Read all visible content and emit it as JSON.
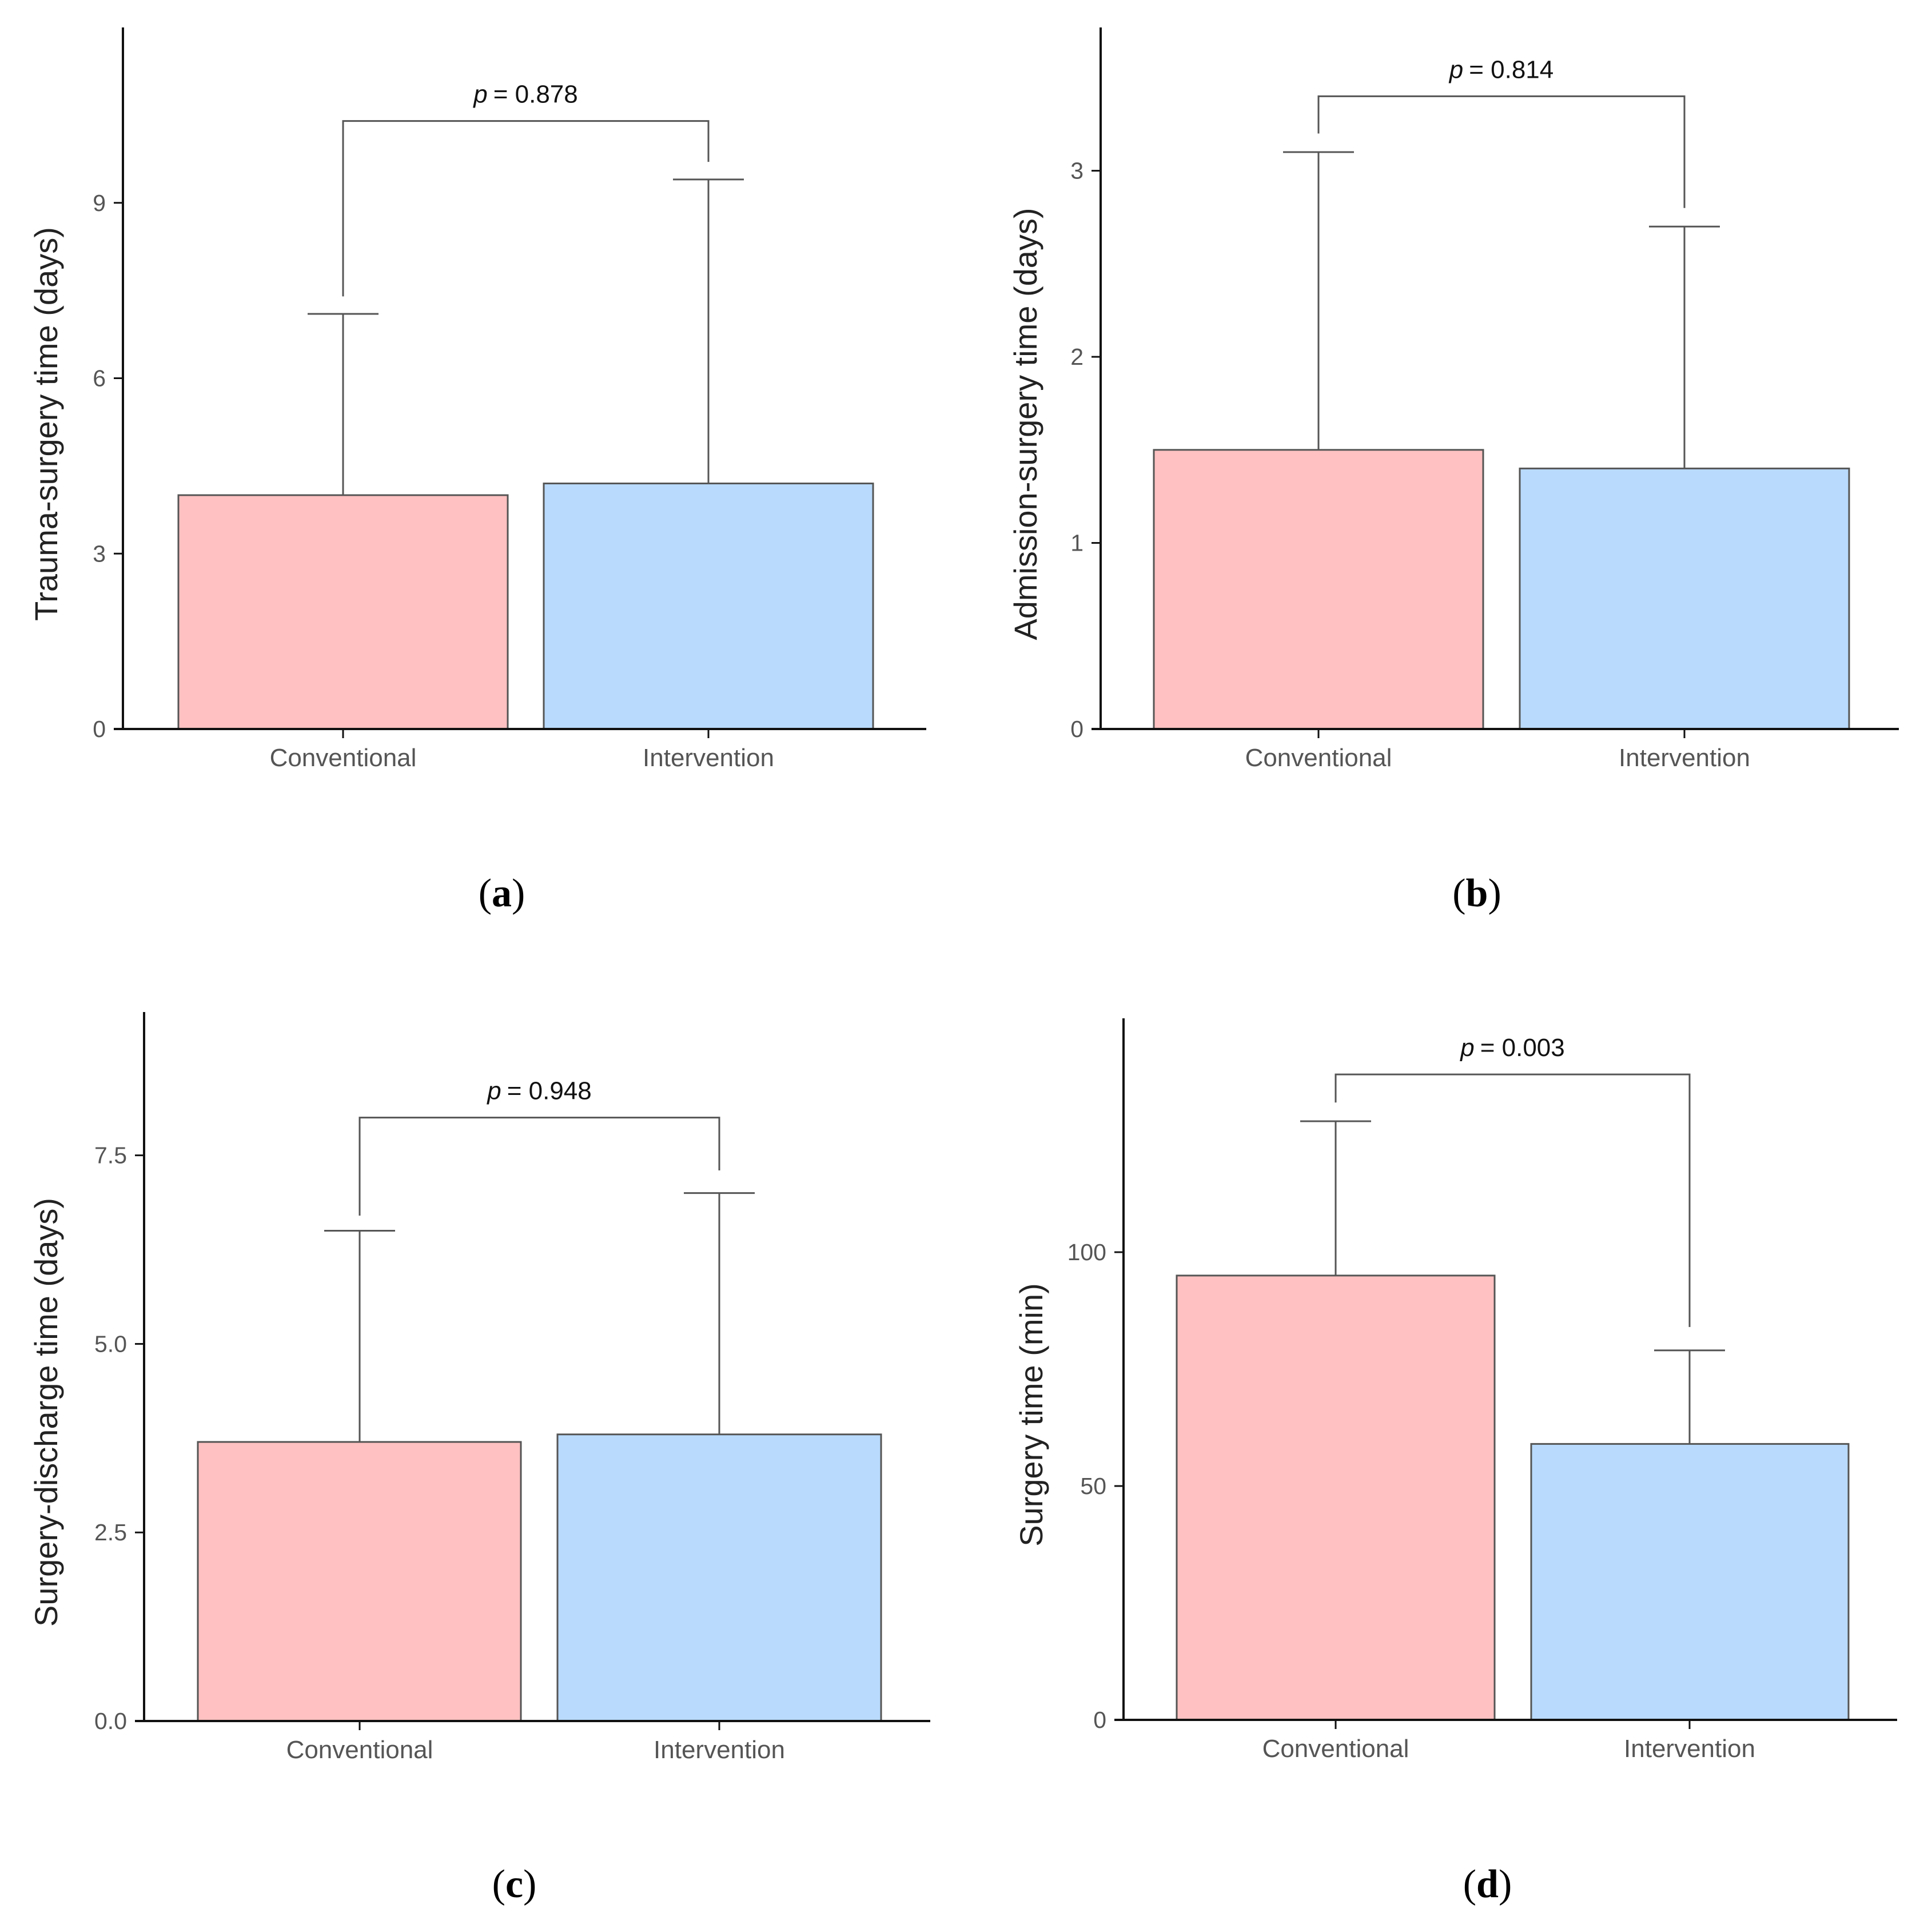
{
  "colors": {
    "conventional": "#ffc1c1",
    "intervention": "#b9dafc",
    "bar_outline": "#555555",
    "axis": "#111111",
    "bracket": "#555555"
  },
  "chart_data": [
    {
      "type": "bar",
      "caption": "a",
      "ylabel": "Trauma-surgery time (days)",
      "categories": [
        "Conventional",
        "Intervention"
      ],
      "values": [
        4.0,
        4.2
      ],
      "error_upper": [
        7.1,
        9.4
      ],
      "ylim": [
        0,
        12
      ],
      "yticks": [
        0,
        3,
        6,
        9
      ],
      "ytick_labels": [
        "0",
        "3",
        "6",
        "9"
      ],
      "bracket": {
        "label_prefix": "p",
        "label_value": "= 0.878",
        "y": 10.4,
        "left_tip": 7.4,
        "right_tip": 9.7
      },
      "grid": false
    },
    {
      "type": "bar",
      "caption": "b",
      "ylabel": "Admission-surgery time (days)",
      "categories": [
        "Conventional",
        "Intervention"
      ],
      "values": [
        1.5,
        1.4
      ],
      "error_upper": [
        3.1,
        2.7
      ],
      "ylim": [
        0,
        3.77
      ],
      "yticks": [
        0,
        1,
        2,
        3
      ],
      "ytick_labels": [
        "0",
        "1",
        "2",
        "3"
      ],
      "bracket": {
        "label_prefix": "p",
        "label_value": "= 0.814",
        "y": 3.4,
        "left_tip": 3.2,
        "right_tip": 2.8
      },
      "grid": false
    },
    {
      "type": "bar",
      "caption": "c",
      "ylabel": "Surgery-discharge time (days)",
      "categories": [
        "Conventional",
        "Intervention"
      ],
      "values": [
        3.7,
        3.8
      ],
      "error_upper": [
        6.5,
        7.0
      ],
      "ylim": [
        0,
        9.4
      ],
      "yticks": [
        0,
        2.5,
        5,
        7.5
      ],
      "ytick_labels": [
        "0.0",
        "2.5",
        "5.0",
        "7.5"
      ],
      "bracket": {
        "label_prefix": "p",
        "label_value": "= 0.948",
        "y": 8.0,
        "left_tip": 6.7,
        "right_tip": 7.3
      },
      "grid": false
    },
    {
      "type": "bar",
      "caption": "d",
      "ylabel": "Surgery time (min)",
      "categories": [
        "Conventional",
        "Intervention"
      ],
      "values": [
        95,
        59
      ],
      "error_upper": [
        128,
        79
      ],
      "ylim": [
        0,
        150
      ],
      "yticks": [
        0,
        50,
        100
      ],
      "ytick_labels": [
        "0",
        "50",
        "100"
      ],
      "bracket": {
        "label_prefix": "p",
        "label_value": "= 0.003",
        "y": 138,
        "left_tip": 132,
        "right_tip": 84
      },
      "grid": false
    }
  ]
}
